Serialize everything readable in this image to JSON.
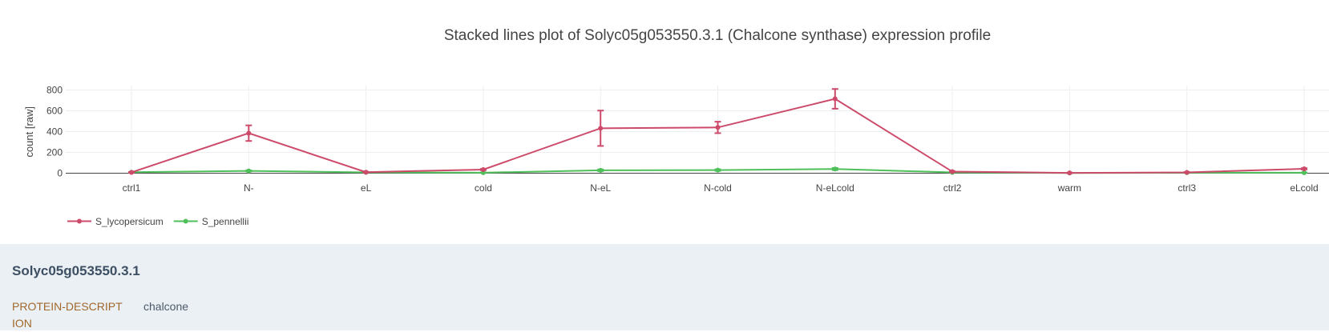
{
  "chart_data": {
    "type": "line",
    "title": "Stacked lines plot of Solyc05g053550.3.1 (Chalcone synthase) expression profile",
    "ylabel": "count [raw]",
    "xlabel": "",
    "categories": [
      "ctrl1",
      "N-",
      "eL",
      "cold",
      "N-eL",
      "N-cold",
      "N-eLcold",
      "ctrl2",
      "warm",
      "ctrl3",
      "eLcold"
    ],
    "ylim": [
      0,
      850
    ],
    "yticks": [
      0,
      200,
      400,
      600,
      800
    ],
    "grid": true,
    "legend_position": "bottom-left",
    "series": [
      {
        "name": "S_lycopersicum",
        "color": "#cc4a6a",
        "values": [
          8,
          385,
          10,
          35,
          432,
          440,
          715,
          15,
          3,
          8,
          42
        ],
        "error": [
          3,
          75,
          3,
          6,
          170,
          55,
          95,
          4,
          2,
          3,
          6
        ]
      },
      {
        "name": "S_pennellii",
        "color": "#4fbf5a",
        "values": [
          10,
          22,
          8,
          5,
          28,
          30,
          40,
          8,
          2,
          5,
          5
        ],
        "error": [
          2,
          5,
          2,
          2,
          8,
          7,
          10,
          2,
          1,
          2,
          2
        ]
      }
    ]
  },
  "gene": {
    "id": "Solyc05g053550.3.1",
    "property_key": "PROTEIN-DESCRIPTION",
    "property_value": "chalcone"
  }
}
